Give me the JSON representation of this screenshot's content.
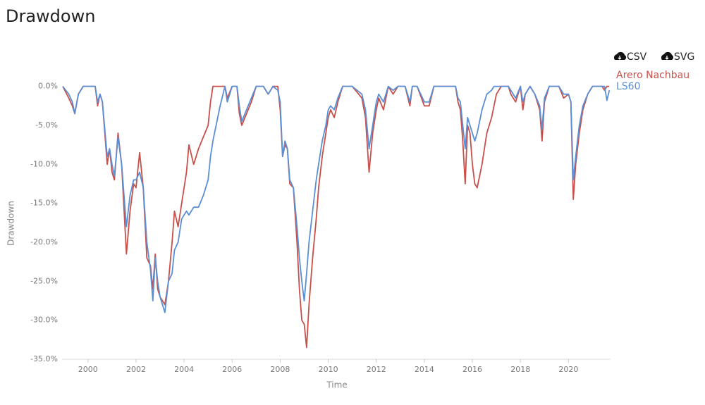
{
  "toolbar": {
    "buttons": [
      "CSV",
      "SVG"
    ]
  },
  "chart_data": {
    "type": "line",
    "title": "Drawdown",
    "xlabel": "Time",
    "ylabel": "Drawdown",
    "legend": "right",
    "grid": false,
    "xlim": [
      1998.92,
      2021.75
    ],
    "ylim": [
      -35,
      0.6
    ],
    "xticks": [
      2000,
      2002,
      2004,
      2006,
      2008,
      2010,
      2012,
      2014,
      2016,
      2018,
      2020
    ],
    "yticks": [
      {
        "value": 0,
        "label": "0.0%"
      },
      {
        "value": -5,
        "label": "-5.0%"
      },
      {
        "value": -10,
        "label": "-10.0%"
      },
      {
        "value": -15,
        "label": "-15.0%"
      },
      {
        "value": -20,
        "label": "-20.0%"
      },
      {
        "value": -25,
        "label": "-25.0%"
      },
      {
        "value": -30,
        "label": "-30.0%"
      },
      {
        "value": -35,
        "label": "-35.0%"
      }
    ],
    "x": [
      1998.95,
      1999.2,
      1999.35,
      1999.45,
      1999.6,
      1999.8,
      2000.0,
      2000.3,
      2000.4,
      2000.5,
      2000.6,
      2000.7,
      2000.8,
      2000.9,
      2001.0,
      2001.1,
      2001.25,
      2001.4,
      2001.6,
      2001.75,
      2001.9,
      2002.0,
      2002.15,
      2002.3,
      2002.45,
      2002.6,
      2002.7,
      2002.8,
      2002.9,
      2003.0,
      2003.2,
      2003.35,
      2003.5,
      2003.6,
      2003.75,
      2003.9,
      2004.1,
      2004.2,
      2004.4,
      2004.6,
      2004.8,
      2005.0,
      2005.1,
      2005.2,
      2005.5,
      2005.7,
      2005.8,
      2006.0,
      2006.2,
      2006.3,
      2006.4,
      2006.6,
      2006.8,
      2007.0,
      2007.3,
      2007.5,
      2007.7,
      2007.9,
      2008.0,
      2008.1,
      2008.2,
      2008.3,
      2008.4,
      2008.55,
      2008.7,
      2008.8,
      2008.9,
      2009.0,
      2009.1,
      2009.2,
      2009.35,
      2009.5,
      2009.6,
      2009.75,
      2009.9,
      2010.0,
      2010.1,
      2010.25,
      2010.4,
      2010.6,
      2011.0,
      2011.4,
      2011.55,
      2011.7,
      2011.85,
      2012.0,
      2012.1,
      2012.3,
      2012.5,
      2012.7,
      2012.9,
      2013.2,
      2013.4,
      2013.5,
      2013.7,
      2014.0,
      2014.2,
      2014.4,
      2015.3,
      2015.4,
      2015.5,
      2015.6,
      2015.7,
      2015.8,
      2015.9,
      2016.0,
      2016.1,
      2016.2,
      2016.4,
      2016.6,
      2016.8,
      2016.9,
      2017.0,
      2017.2,
      2017.5,
      2017.6,
      2017.8,
      2018.0,
      2018.1,
      2018.2,
      2018.4,
      2018.6,
      2018.8,
      2018.9,
      2019.0,
      2019.2,
      2019.6,
      2019.8,
      2020.0,
      2020.1,
      2020.2,
      2020.3,
      2020.45,
      2020.6,
      2020.8,
      2021.0,
      2021.4,
      2021.5,
      2021.6,
      2021.7
    ],
    "series": [
      {
        "name": "Arero Nachbau",
        "color": "#c9504a",
        "values": [
          0,
          -1.5,
          -2.5,
          -3.5,
          -1,
          0,
          0,
          0,
          -2.5,
          -1,
          -2,
          -6,
          -10,
          -8,
          -11,
          -12,
          -6,
          -10,
          -21.5,
          -16,
          -12.5,
          -13,
          -8.5,
          -13,
          -22,
          -23,
          -26,
          -21.5,
          -26,
          -27,
          -28,
          -25,
          -20,
          -16,
          -18,
          -15,
          -11,
          -7.5,
          -10,
          -8,
          -6.5,
          -5,
          -2,
          0,
          0,
          0,
          -1.5,
          0,
          0,
          -3.5,
          -5,
          -3.5,
          -2,
          0,
          0,
          -1,
          0,
          0,
          -3,
          -9,
          -7.5,
          -8,
          -12.5,
          -13,
          -20,
          -26,
          -30,
          -30.5,
          -33.5,
          -28,
          -22,
          -17,
          -13,
          -9,
          -6,
          -4,
          -3,
          -4,
          -2,
          0,
          0,
          -1.5,
          -4,
          -11,
          -6,
          -3,
          -1.5,
          -3,
          0,
          -1,
          0,
          0,
          -2.5,
          0,
          0,
          -2.5,
          -2.5,
          0,
          0,
          -2,
          -3,
          -7,
          -12.5,
          -5,
          -6,
          -10,
          -12.5,
          -13,
          -10,
          -6,
          -4,
          -2.5,
          -1,
          0,
          0,
          -1,
          -2,
          0,
          -3,
          -1,
          0,
          -1,
          -3,
          -7,
          -2,
          0,
          0,
          -1.5,
          -1,
          -2,
          -14.5,
          -10,
          -6,
          -3,
          -1,
          0,
          0,
          -0.5,
          0,
          0
        ]
      },
      {
        "name": "LS60",
        "color": "#5a8fd6",
        "values": [
          0,
          -1,
          -2,
          -3.5,
          -1,
          0,
          0,
          0,
          -2,
          -1,
          -2,
          -5.5,
          -9,
          -8,
          -10,
          -11.5,
          -6.5,
          -10,
          -18,
          -14,
          -12,
          -12,
          -11,
          -13,
          -20,
          -23.5,
          -27.5,
          -22,
          -25,
          -27,
          -29,
          -25,
          -24,
          -21,
          -20,
          -17,
          -16,
          -16.5,
          -15.5,
          -15.5,
          -14,
          -12,
          -9,
          -7,
          -2.5,
          0,
          -2,
          0,
          0,
          -2.5,
          -4.5,
          -3,
          -1.5,
          0,
          0,
          -1,
          0,
          -0.5,
          -2,
          -9,
          -7,
          -8,
          -12,
          -13,
          -18,
          -22,
          -25,
          -27.5,
          -24,
          -20,
          -16,
          -12,
          -10,
          -7,
          -5,
          -3,
          -2.5,
          -3,
          -1.5,
          0,
          0,
          -1,
          -3,
          -8,
          -5,
          -2,
          -1,
          -2,
          0,
          -0.5,
          0,
          0,
          -2,
          0,
          0,
          -2,
          -2,
          0,
          0,
          -1.5,
          -2,
          -5,
          -8,
          -4,
          -5,
          -6,
          -7,
          -6,
          -3,
          -1,
          -0.5,
          0,
          0,
          0,
          0,
          -0.5,
          -1.5,
          0,
          -2,
          -1,
          0,
          -1,
          -2.5,
          -5.5,
          -1.5,
          0,
          0,
          -1,
          -1,
          -2,
          -12,
          -9,
          -5,
          -2.5,
          -1,
          0,
          0,
          0,
          -1.8,
          -0.5
        ]
      }
    ]
  }
}
